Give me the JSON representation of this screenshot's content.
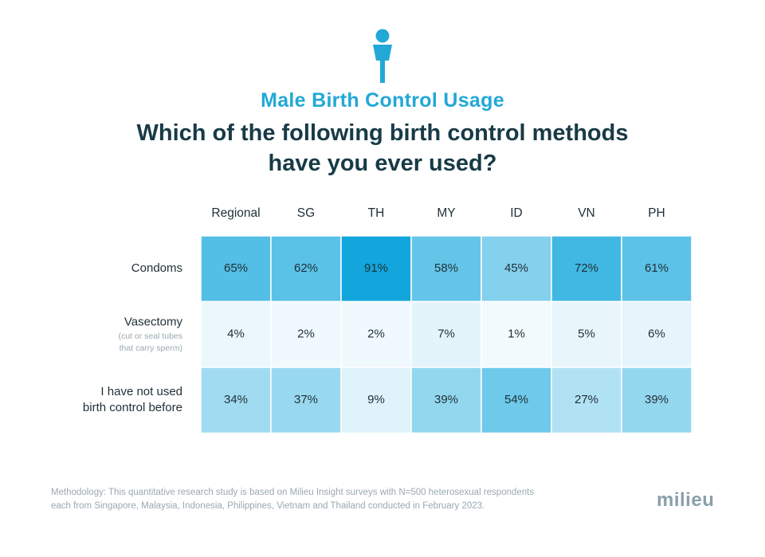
{
  "header": {
    "subtitle": "Male Birth Control Usage",
    "question_line1": "Which of the following birth control methods",
    "question_line2": "have you ever used?",
    "icon": "male-person-icon"
  },
  "footer": {
    "methodology_line1": "Methodology: This quantitative research study is based on Milieu Insight surveys with N=500 heterosexual respondents",
    "methodology_line2": "each from Singapore, Malaysia, Indonesia, Philippines, Vietnam and Thailand conducted in February 2023.",
    "brand": "milieu"
  },
  "colors": {
    "accent": "#22a8d6",
    "title": "#173a46",
    "cell_scale_low": "#f2fafd",
    "cell_scale_high": "#12a6dd"
  },
  "chart_data": {
    "type": "heatmap",
    "title": "",
    "columns": [
      "Regional",
      "SG",
      "TH",
      "MY",
      "ID",
      "VN",
      "PH"
    ],
    "rows": [
      {
        "label_lines": [
          "Condoms"
        ],
        "note_lines": []
      },
      {
        "label_lines": [
          "Vasectomy"
        ],
        "note_lines": [
          "(cut or seal tubes",
          "that carry sperm)"
        ]
      },
      {
        "label_lines": [
          "I have not used",
          "birth control before"
        ],
        "note_lines": []
      }
    ],
    "values": [
      [
        65,
        62,
        91,
        58,
        45,
        72,
        61
      ],
      [
        4,
        2,
        2,
        7,
        1,
        5,
        6
      ],
      [
        34,
        37,
        9,
        39,
        54,
        27,
        39
      ]
    ],
    "unit": "%"
  }
}
